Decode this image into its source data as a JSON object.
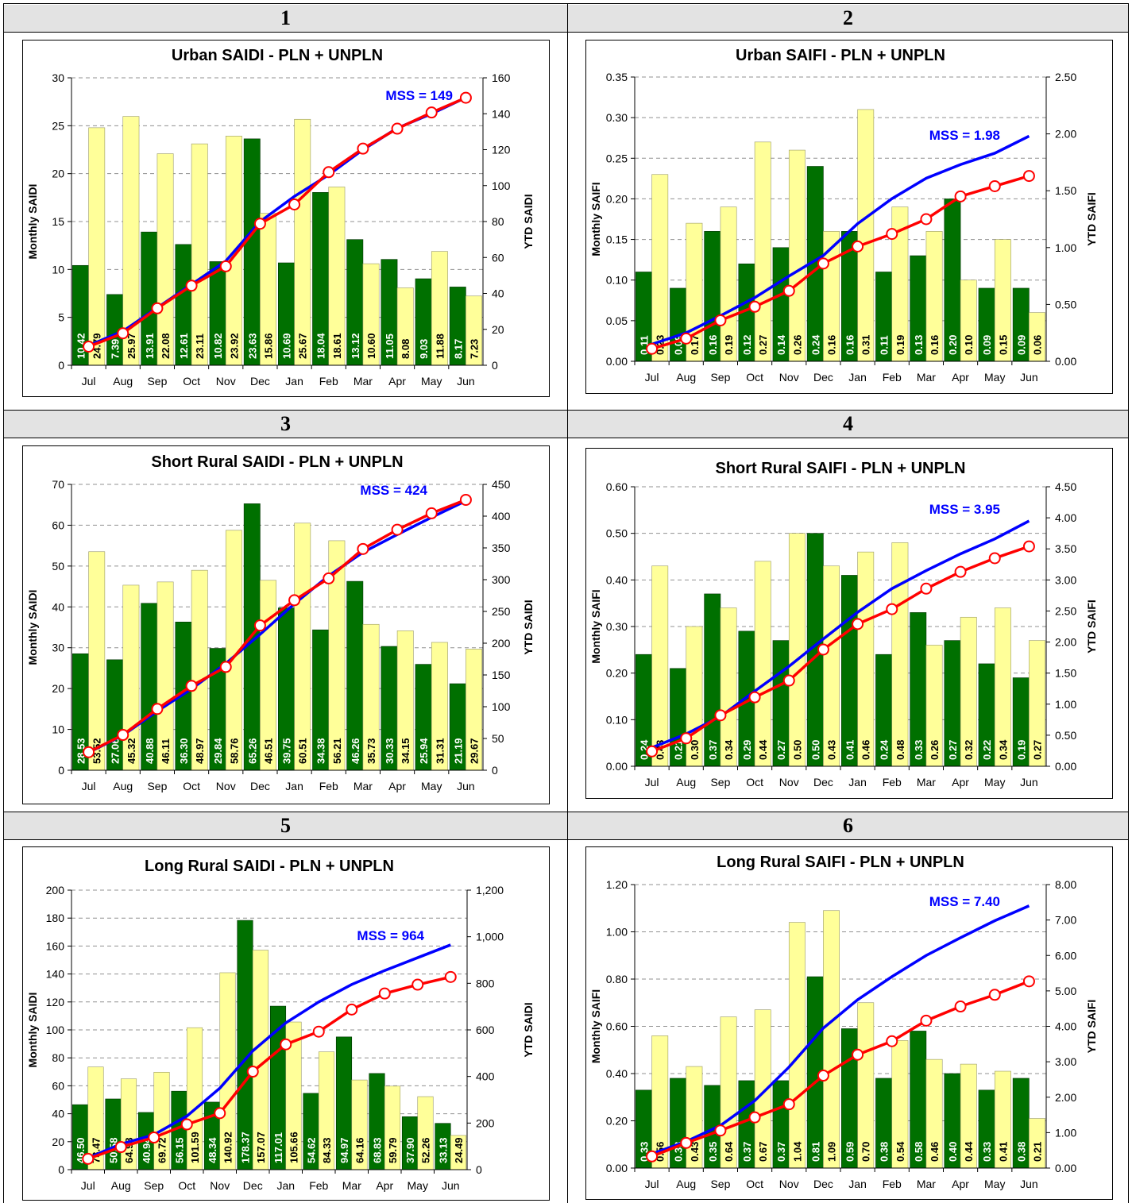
{
  "months": [
    "Jul",
    "Aug",
    "Sep",
    "Oct",
    "Nov",
    "Dec",
    "Jan",
    "Feb",
    "Mar",
    "Apr",
    "May",
    "Jun"
  ],
  "colors": {
    "actual_bar": "#007000",
    "yellow_bar": "#ffff99",
    "mss_line": "#0000ff",
    "ytd_line": "#ff0000"
  },
  "chart_data": [
    {
      "panel_label": "1",
      "type": "bar",
      "title": "Urban SAIDI - PLN + UNPLN",
      "ylabel": "Monthly SAIDI",
      "y2label": "YTD SAIDI",
      "ylim": [
        0,
        30
      ],
      "yticks": [
        "0",
        "5",
        "10",
        "15",
        "20",
        "25",
        "30"
      ],
      "y2lim": [
        0,
        160
      ],
      "y2ticks": [
        "0",
        "20",
        "40",
        "60",
        "80",
        "100",
        "120",
        "140",
        "160"
      ],
      "mss_label": "MSS = 149",
      "series": [
        {
          "values": [
            10.42,
            7.39,
            13.91,
            12.61,
            10.82,
            23.63,
            10.69,
            18.04,
            13.12,
            11.05,
            9.03,
            8.17
          ],
          "labels": [
            "10.42",
            "7.39",
            "13.91",
            "12.61",
            "10.82",
            "23.63",
            "10.69",
            "18.04",
            "13.12",
            "11.05",
            "9.03",
            "8.17"
          ]
        },
        {
          "values": [
            24.79,
            25.97,
            22.08,
            23.11,
            23.92,
            15.86,
            25.67,
            18.61,
            10.6,
            8.08,
            11.88,
            7.23
          ],
          "labels": [
            "24.79",
            "25.97",
            "22.08",
            "23.11",
            "23.92",
            "15.86",
            "25.67",
            "18.61",
            "10.60",
            "8.08",
            "11.88",
            "7.23"
          ]
        },
        {
          "values": [
            11,
            19,
            32,
            45,
            58,
            80,
            94,
            106,
            120,
            132,
            140,
            149
          ]
        },
        {
          "values": [
            10.4,
            17.8,
            31.7,
            44.3,
            55.1,
            78.8,
            89.5,
            107.5,
            120.6,
            131.7,
            140.7,
            148.9
          ]
        }
      ]
    },
    {
      "panel_label": "2",
      "type": "bar",
      "title": "Urban SAIFI - PLN + UNPLN",
      "ylabel": "Monthly SAIFI",
      "y2label": "YTD SAIFI",
      "ylim": [
        0,
        0.35
      ],
      "yticks": [
        "0.00",
        "0.05",
        "0.10",
        "0.15",
        "0.20",
        "0.25",
        "0.30",
        "0.35"
      ],
      "y2lim": [
        0,
        2.5
      ],
      "y2ticks": [
        "0.00",
        "0.50",
        "1.00",
        "1.50",
        "2.00",
        "2.50"
      ],
      "mss_label": "MSS = 1.98",
      "series": [
        {
          "values": [
            0.11,
            0.09,
            0.16,
            0.12,
            0.14,
            0.24,
            0.16,
            0.11,
            0.13,
            0.2,
            0.09,
            0.09
          ],
          "labels": [
            "0.11",
            "0.09",
            "0.16",
            "0.12",
            "0.14",
            "0.24",
            "0.16",
            "0.11",
            "0.13",
            "0.20",
            "0.09",
            "0.09"
          ]
        },
        {
          "values": [
            0.23,
            0.17,
            0.19,
            0.27,
            0.26,
            0.16,
            0.31,
            0.19,
            0.16,
            0.1,
            0.15,
            0.06
          ],
          "labels": [
            "0.23",
            "0.17",
            "0.19",
            "0.27",
            "0.26",
            "0.16",
            "0.31",
            "0.19",
            "0.16",
            "0.10",
            "0.15",
            "0.06"
          ]
        },
        {
          "values": [
            0.15,
            0.25,
            0.4,
            0.56,
            0.75,
            0.93,
            1.21,
            1.43,
            1.61,
            1.73,
            1.83,
            1.98
          ]
        },
        {
          "values": [
            0.11,
            0.2,
            0.36,
            0.48,
            0.62,
            0.86,
            1.01,
            1.12,
            1.25,
            1.45,
            1.54,
            1.63
          ]
        }
      ]
    },
    {
      "panel_label": "3",
      "type": "bar",
      "title": "Short Rural SAIDI - PLN + UNPLN",
      "ylabel": "Monthly SAIDI",
      "y2label": "YTD SAIDI",
      "ylim": [
        0,
        70
      ],
      "yticks": [
        "0",
        "10",
        "20",
        "30",
        "40",
        "50",
        "60",
        "70"
      ],
      "y2lim": [
        0,
        450
      ],
      "y2ticks": [
        "0",
        "50",
        "100",
        "150",
        "200",
        "250",
        "300",
        "350",
        "400",
        "450"
      ],
      "mss_label": "MSS = 424",
      "series": [
        {
          "values": [
            28.53,
            27.06,
            40.88,
            36.3,
            29.84,
            65.26,
            39.75,
            34.38,
            46.26,
            30.33,
            25.94,
            21.19
          ],
          "labels": [
            "28.53",
            "27.06",
            "40.88",
            "36.30",
            "29.84",
            "65.26",
            "39.75",
            "34.38",
            "46.26",
            "30.33",
            "25.94",
            "21.19"
          ]
        },
        {
          "values": [
            53.52,
            45.32,
            46.11,
            48.97,
            58.76,
            46.51,
            60.51,
            56.21,
            35.73,
            34.15,
            31.31,
            29.67
          ],
          "labels": [
            "53.52",
            "45.32",
            "46.11",
            "48.97",
            "58.76",
            "46.51",
            "60.51",
            "56.21",
            "35.73",
            "34.15",
            "31.31",
            "29.67"
          ]
        },
        {
          "values": [
            28,
            55,
            93,
            128,
            168,
            214,
            262,
            306,
            343,
            371,
            398,
            424
          ]
        },
        {
          "values": [
            28.5,
            55.6,
            96.5,
            132.8,
            162.6,
            227.9,
            267.6,
            302.0,
            348.3,
            378.6,
            404.5,
            425.7
          ]
        }
      ]
    },
    {
      "panel_label": "4",
      "type": "bar",
      "title": "Short Rural SAIFI - PLN + UNPLN",
      "ylabel": "Monthly SAIFI",
      "y2label": "YTD SAIFI",
      "ylim": [
        0,
        0.6
      ],
      "yticks": [
        "0.00",
        "0.10",
        "0.20",
        "0.30",
        "0.40",
        "0.50",
        "0.60"
      ],
      "y2lim": [
        0,
        4.5
      ],
      "y2ticks": [
        "0.00",
        "0.50",
        "1.00",
        "1.50",
        "2.00",
        "2.50",
        "3.00",
        "3.50",
        "4.00",
        "4.50"
      ],
      "mss_label": "MSS = 3.95",
      "series": [
        {
          "values": [
            0.24,
            0.21,
            0.37,
            0.29,
            0.27,
            0.5,
            0.41,
            0.24,
            0.33,
            0.27,
            0.22,
            0.19
          ],
          "labels": [
            "0.24",
            "0.21",
            "0.37",
            "0.29",
            "0.27",
            "0.50",
            "0.41",
            "0.24",
            "0.33",
            "0.27",
            "0.22",
            "0.19"
          ]
        },
        {
          "values": [
            0.43,
            0.3,
            0.34,
            0.44,
            0.5,
            0.43,
            0.46,
            0.48,
            0.26,
            0.32,
            0.34,
            0.27
          ],
          "labels": [
            "0.43",
            "0.30",
            "0.34",
            "0.44",
            "0.50",
            "0.43",
            "0.46",
            "0.48",
            "0.26",
            "0.32",
            "0.34",
            "0.27"
          ]
        },
        {
          "values": [
            0.3,
            0.52,
            0.8,
            1.21,
            1.61,
            2.05,
            2.48,
            2.86,
            3.15,
            3.42,
            3.66,
            3.95
          ]
        },
        {
          "values": [
            0.24,
            0.45,
            0.82,
            1.11,
            1.38,
            1.88,
            2.29,
            2.53,
            2.86,
            3.13,
            3.35,
            3.54
          ]
        }
      ]
    },
    {
      "panel_label": "5",
      "type": "bar",
      "title": "Long Rural SAIDI - PLN + UNPLN",
      "ylabel": "Monthly SAIDI",
      "y2label": "YTD SAIDI",
      "ylim": [
        0,
        200
      ],
      "yticks": [
        "0",
        "20",
        "40",
        "60",
        "80",
        "100",
        "120",
        "140",
        "160",
        "180",
        "200"
      ],
      "y2lim": [
        0,
        1200
      ],
      "y2ticks": [
        "0",
        "200",
        "400",
        "600",
        "800",
        "1,000",
        "1,200"
      ],
      "mss_label": "MSS = 964",
      "series": [
        {
          "values": [
            46.5,
            50.58,
            40.94,
            56.15,
            48.34,
            178.37,
            117.01,
            54.62,
            94.97,
            68.83,
            37.9,
            33.13
          ],
          "labels": [
            "46.50",
            "50.58",
            "40.94",
            "56.15",
            "48.34",
            "178.37",
            "117.01",
            "54.62",
            "94.97",
            "68.83",
            "37.90",
            "33.13"
          ]
        },
        {
          "values": [
            73.47,
            64.98,
            69.72,
            101.59,
            140.92,
            157.07,
            105.66,
            84.33,
            64.16,
            59.79,
            52.26,
            24.49
          ],
          "labels": [
            "73.47",
            "64.98",
            "69.72",
            "101.59",
            "140.92",
            "157.07",
            "105.66",
            "84.33",
            "64.16",
            "59.79",
            "52.26",
            "24.49"
          ]
        },
        {
          "values": [
            50,
            110,
            150,
            230,
            350,
            510,
            630,
            720,
            795,
            855,
            910,
            965
          ]
        },
        {
          "values": [
            46.5,
            97.1,
            138.0,
            194.2,
            242.5,
            420.9,
            537.9,
            592.5,
            687.5,
            756.3,
            794.2,
            827.3
          ]
        }
      ]
    },
    {
      "panel_label": "6",
      "type": "bar",
      "title": "Long Rural SAIFI - PLN + UNPLN",
      "ylabel": "Monthly SAIFI",
      "y2label": "YTD SAIFI",
      "ylim": [
        0,
        1.2
      ],
      "yticks": [
        "0.00",
        "0.20",
        "0.40",
        "0.60",
        "0.80",
        "1.00",
        "1.20"
      ],
      "y2lim": [
        0,
        8
      ],
      "y2ticks": [
        "0.00",
        "1.00",
        "2.00",
        "3.00",
        "4.00",
        "5.00",
        "6.00",
        "7.00",
        "8.00"
      ],
      "mss_label": "MSS = 7.40",
      "series": [
        {
          "values": [
            0.33,
            0.38,
            0.35,
            0.37,
            0.37,
            0.81,
            0.59,
            0.38,
            0.58,
            0.4,
            0.33,
            0.38
          ],
          "labels": [
            "0.33",
            "0.38",
            "0.35",
            "0.37",
            "0.37",
            "0.81",
            "0.59",
            "0.38",
            "0.58",
            "0.40",
            "0.33",
            "0.38"
          ]
        },
        {
          "values": [
            0.56,
            0.43,
            0.64,
            0.67,
            1.04,
            1.09,
            0.7,
            0.54,
            0.46,
            0.44,
            0.41,
            0.21
          ],
          "labels": [
            "0.56",
            "0.43",
            "0.64",
            "0.67",
            "1.04",
            "1.09",
            "0.70",
            "0.54",
            "0.46",
            "0.44",
            "0.41",
            "0.21"
          ]
        },
        {
          "values": [
            0.4,
            0.75,
            1.2,
            1.9,
            2.85,
            3.95,
            4.75,
            5.4,
            6.0,
            6.5,
            6.98,
            7.4
          ]
        },
        {
          "values": [
            0.33,
            0.71,
            1.06,
            1.43,
            1.8,
            2.61,
            3.2,
            3.58,
            4.16,
            4.56,
            4.89,
            5.27
          ]
        }
      ]
    }
  ]
}
